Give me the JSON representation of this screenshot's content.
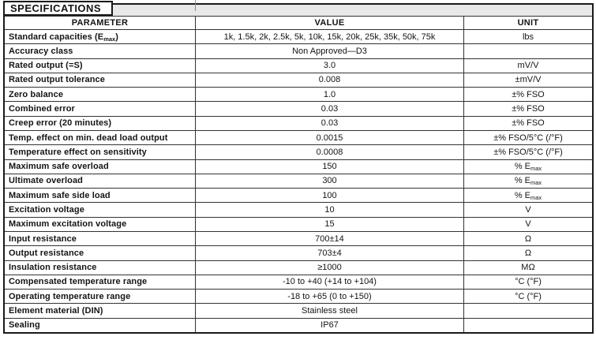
{
  "table": {
    "title": "SPECIFICATIONS",
    "columns": [
      {
        "label": "PARAMETER"
      },
      {
        "label": "VALUE"
      },
      {
        "label": "UNIT"
      }
    ],
    "rows": [
      {
        "param": [
          {
            "t": "Standard capacities (E"
          },
          {
            "t": "max",
            "sub": true
          },
          {
            "t": ")"
          }
        ],
        "value": "1k, 1.5k, 2k, 2.5k, 5k, 10k, 15k, 20k, 25k, 35k, 50k, 75k",
        "unit": "lbs"
      },
      {
        "param": "Accuracy class",
        "value": "Non Approved—D3",
        "unit": ""
      },
      {
        "param": "Rated output (=S)",
        "value": "3.0",
        "unit": "mV/V"
      },
      {
        "param": "Rated output tolerance",
        "value": "0.008",
        "unit": "±mV/V"
      },
      {
        "param": "Zero balance",
        "value": "1.0",
        "unit": "±% FSO"
      },
      {
        "param": "Combined error",
        "value": "0.03",
        "unit": "±% FSO"
      },
      {
        "param": "Creep error (20 minutes)",
        "value": "0.03",
        "unit": "±% FSO"
      },
      {
        "param": "Temp. effect on min. dead load output",
        "value": "0.0015",
        "unit": "±% FSO/5°C (/°F)"
      },
      {
        "param": "Temperature effect on sensitivity",
        "value": "0.0008",
        "unit": "±% FSO/5°C (/°F)"
      },
      {
        "param": "Maximum safe overload",
        "value": "150",
        "unit": [
          {
            "t": "% E"
          },
          {
            "t": "max",
            "sub": true
          }
        ]
      },
      {
        "param": "Ultimate overload",
        "value": "300",
        "unit": [
          {
            "t": "% E"
          },
          {
            "t": "max",
            "sub": true
          }
        ]
      },
      {
        "param": "Maximum safe side load",
        "value": "100",
        "unit": [
          {
            "t": "% E"
          },
          {
            "t": "max",
            "sub": true
          }
        ]
      },
      {
        "param": "Excitation voltage",
        "value": "10",
        "unit": "V"
      },
      {
        "param": "Maximum excitation voltage",
        "value": "15",
        "unit": "V"
      },
      {
        "param": "Input resistance",
        "value": "700±14",
        "unit": "Ω"
      },
      {
        "param": "Output resistance",
        "value": "703±4",
        "unit": "Ω"
      },
      {
        "param": "Insulation resistance",
        "value": "≥1000",
        "unit": "MΩ"
      },
      {
        "param": "Compensated temperature range",
        "value": "-10 to +40 (+14 to +104)",
        "unit": "°C (°F)"
      },
      {
        "param": "Operating temperature range",
        "value": "-18 to +65 (0 to +150)",
        "unit": "°C (°F)"
      },
      {
        "param": "Element material (DIN)",
        "value": "Stainless steel",
        "unit": ""
      },
      {
        "param": "Sealing",
        "value": "IP67",
        "unit": ""
      }
    ]
  },
  "colors": {
    "outer_border": "#1a1a1a",
    "grid_line": "#333333",
    "title_band_bg": "#e8e8e8",
    "text": "#141414",
    "background": "#ffffff"
  }
}
